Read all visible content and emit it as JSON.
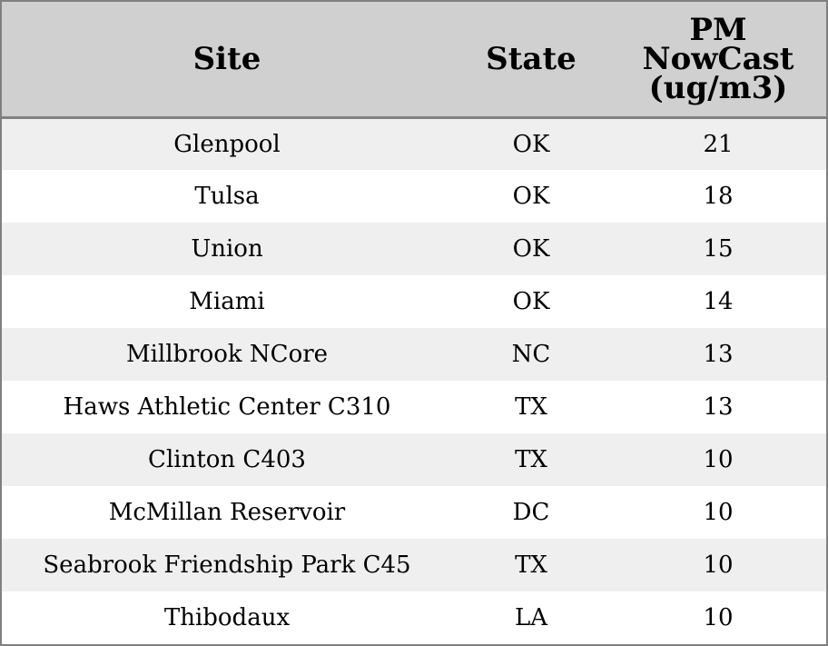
{
  "chart_data": {
    "type": "table",
    "columns": [
      "Site",
      "State",
      "PM NowCast (ug/m3)"
    ],
    "header_lines": {
      "site": [
        "Site"
      ],
      "state": [
        "State"
      ],
      "pm": [
        "PM",
        "NowCast",
        "(ug/m3)"
      ]
    },
    "rows": [
      {
        "site": "Glenpool",
        "state": "OK",
        "pm": "21"
      },
      {
        "site": "Tulsa",
        "state": "OK",
        "pm": "18"
      },
      {
        "site": "Union",
        "state": "OK",
        "pm": "15"
      },
      {
        "site": "Miami",
        "state": "OK",
        "pm": "14"
      },
      {
        "site": "Millbrook NCore",
        "state": "NC",
        "pm": "13"
      },
      {
        "site": "Haws Athletic Center C310",
        "state": "TX",
        "pm": "13"
      },
      {
        "site": "Clinton C403",
        "state": "TX",
        "pm": "10"
      },
      {
        "site": "McMillan Reservoir",
        "state": "DC",
        "pm": "10"
      },
      {
        "site": "Seabrook Friendship Park C45",
        "state": "TX",
        "pm": "10"
      },
      {
        "site": "Thibodaux",
        "state": "LA",
        "pm": "10"
      }
    ]
  },
  "colors": {
    "header_bg": "#d0d0d0",
    "stripe_bg": "#efefef",
    "row_bg": "#ffffff",
    "border": "#808080",
    "text": "#000000"
  }
}
